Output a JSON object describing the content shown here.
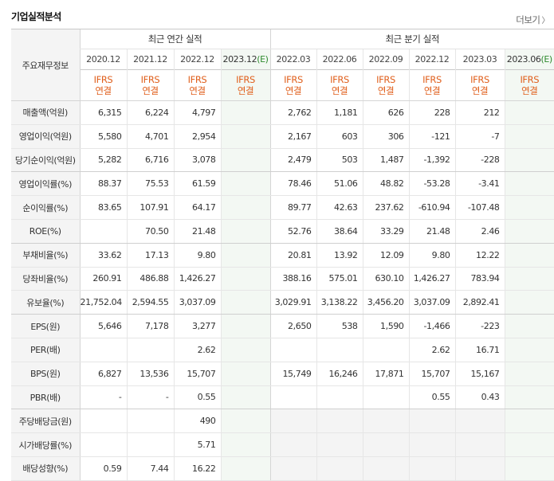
{
  "header": {
    "title": "기업실적분석",
    "more_label": "더보기"
  },
  "table": {
    "row_header_label": "주요재무정보",
    "groups": {
      "annual": "최근 연간 실적",
      "quarterly": "최근 분기 실적"
    },
    "periods": [
      {
        "label": "2020.12",
        "est": ""
      },
      {
        "label": "2021.12",
        "est": ""
      },
      {
        "label": "2022.12",
        "est": ""
      },
      {
        "label": "2023.12",
        "est": "(E)"
      },
      {
        "label": "2022.03",
        "est": ""
      },
      {
        "label": "2022.06",
        "est": ""
      },
      {
        "label": "2022.09",
        "est": ""
      },
      {
        "label": "2022.12",
        "est": ""
      },
      {
        "label": "2023.03",
        "est": ""
      },
      {
        "label": "2023.06",
        "est": "(E)"
      }
    ],
    "ifrs_top": "IFRS",
    "ifrs_bottom": "연결",
    "rows": [
      {
        "label": "매출액(억원)",
        "values": [
          "6,315",
          "6,224",
          "4,797",
          "",
          "2,762",
          "1,181",
          "626",
          "228",
          "212",
          ""
        ]
      },
      {
        "label": "영업이익(억원)",
        "values": [
          "5,580",
          "4,701",
          "2,954",
          "",
          "2,167",
          "603",
          "306",
          "-121",
          "-7",
          ""
        ]
      },
      {
        "label": "당기순이익(억원)",
        "values": [
          "5,282",
          "6,716",
          "3,078",
          "",
          "2,479",
          "503",
          "1,487",
          "-1,392",
          "-228",
          ""
        ]
      },
      {
        "label": "영업이익률(%)",
        "values": [
          "88.37",
          "75.53",
          "61.59",
          "",
          "78.46",
          "51.06",
          "48.82",
          "-53.28",
          "-3.41",
          ""
        ]
      },
      {
        "label": "순이익률(%)",
        "values": [
          "83.65",
          "107.91",
          "64.17",
          "",
          "89.77",
          "42.63",
          "237.62",
          "-610.94",
          "-107.48",
          ""
        ]
      },
      {
        "label": "ROE(%)",
        "values": [
          "",
          "70.50",
          "21.48",
          "",
          "52.76",
          "38.64",
          "33.29",
          "21.48",
          "2.46",
          ""
        ]
      },
      {
        "label": "부채비율(%)",
        "values": [
          "33.62",
          "17.13",
          "9.80",
          "",
          "20.81",
          "13.92",
          "12.09",
          "9.80",
          "12.22",
          ""
        ]
      },
      {
        "label": "당좌비율(%)",
        "values": [
          "260.91",
          "486.88",
          "1,426.27",
          "",
          "388.16",
          "575.01",
          "630.10",
          "1,426.27",
          "783.94",
          ""
        ]
      },
      {
        "label": "유보율(%)",
        "values": [
          "21,752.04",
          "2,594.55",
          "3,037.09",
          "",
          "3,029.91",
          "3,138.22",
          "3,456.20",
          "3,037.09",
          "2,892.41",
          ""
        ]
      },
      {
        "label": "EPS(원)",
        "values": [
          "5,646",
          "7,178",
          "3,277",
          "",
          "2,650",
          "538",
          "1,590",
          "-1,466",
          "-223",
          ""
        ]
      },
      {
        "label": "PER(배)",
        "values": [
          "",
          "",
          "2.62",
          "",
          "",
          "",
          "",
          "2.62",
          "16.71",
          ""
        ]
      },
      {
        "label": "BPS(원)",
        "values": [
          "6,827",
          "13,536",
          "15,707",
          "",
          "15,749",
          "16,246",
          "17,871",
          "15,707",
          "15,167",
          ""
        ]
      },
      {
        "label": "PBR(배)",
        "values": [
          "-",
          "-",
          "0.55",
          "",
          "",
          "",
          "",
          "0.55",
          "0.43",
          ""
        ]
      },
      {
        "label": "주당배당금(원)",
        "values": [
          "",
          "",
          "490",
          "",
          "",
          "",
          "",
          "",
          "",
          ""
        ]
      },
      {
        "label": "시가배당률(%)",
        "values": [
          "",
          "",
          "5.71",
          "",
          "",
          "",
          "",
          "",
          "",
          ""
        ]
      },
      {
        "label": "배당성향(%)",
        "values": [
          "0.59",
          "7.44",
          "16.22",
          "",
          "",
          "",
          "",
          "",
          "",
          ""
        ]
      }
    ]
  },
  "colors": {
    "ifrs": "#e05f1c",
    "negative": "#e0351c",
    "estimate_bg": "#f3f8f3",
    "estimate_text": "#2d8a2d",
    "label_bg": "#f4f4f4"
  }
}
